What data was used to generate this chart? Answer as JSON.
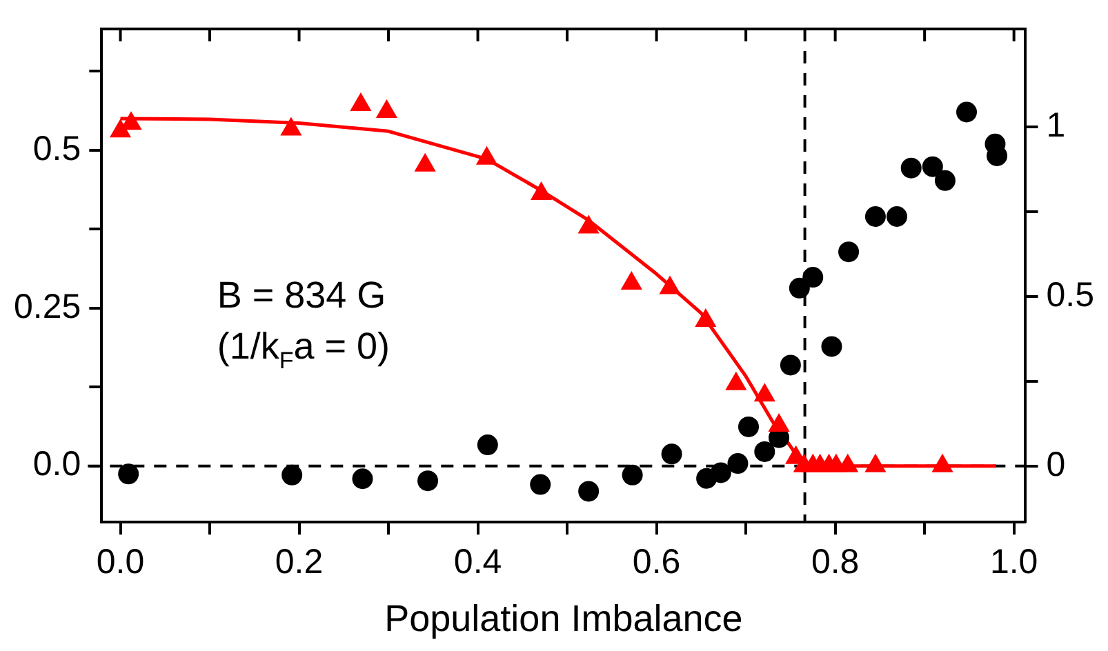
{
  "chart_data": {
    "type": "scatter",
    "xlabel": "Population Imbalance",
    "xlim": [
      -0.021,
      1.013
    ],
    "xticks": [
      {
        "value": 0,
        "label": "0.0"
      },
      {
        "value": 0.1,
        "label": null
      },
      {
        "value": 0.2,
        "label": "0.2"
      },
      {
        "value": 0.3,
        "label": null
      },
      {
        "value": 0.4,
        "label": "0.4"
      },
      {
        "value": 0.5,
        "label": null
      },
      {
        "value": 0.6,
        "label": "0.6"
      },
      {
        "value": 0.7,
        "label": null
      },
      {
        "value": 0.8,
        "label": "0.8"
      },
      {
        "value": 0.9,
        "label": null
      },
      {
        "value": 1,
        "label": "1.0"
      }
    ],
    "ylim": [
      -0.089,
      0.692
    ],
    "yticks": [
      {
        "value": 0,
        "label": "0.0"
      },
      {
        "value": 0.125,
        "label": null
      },
      0.25,
      {
        "value": 0.375,
        "label": null
      },
      0.5,
      {
        "value": 0.625,
        "label": null
      }
    ],
    "y2lim": [
      -0.165,
      1.289
    ],
    "y2ticks": [
      0,
      {
        "value": 0.25,
        "label": null
      },
      0.5,
      {
        "value": 0.75,
        "label": null
      },
      1
    ],
    "series": [
      {
        "type": "scatter",
        "marker": "triangle",
        "color": "#ff0000",
        "x": [
          0.0,
          0.012,
          0.191,
          0.269,
          0.298,
          0.341,
          0.41,
          0.471,
          0.524,
          0.572,
          0.615,
          0.655,
          0.689,
          0.721,
          0.737,
          0.756,
          0.765,
          0.775,
          0.783,
          0.793,
          0.801,
          0.814,
          0.845,
          0.92
        ],
        "values": [
          0.53,
          0.542,
          0.533,
          0.572,
          0.561,
          0.476,
          0.487,
          0.431,
          0.378,
          0.289,
          0.282,
          0.23,
          0.13,
          0.112,
          0.064,
          0.013,
          0,
          0,
          0,
          0,
          0,
          0,
          0,
          0
        ]
      },
      {
        "type": "line",
        "marker": "none",
        "line_style": "solid",
        "color": "#ff0000",
        "x": [
          0,
          0.1,
          0.2,
          0.3,
          0.41,
          0.47,
          0.524,
          0.6,
          0.65,
          0.7,
          0.73,
          0.75,
          0.76,
          0.77,
          0.98
        ],
        "values": [
          0.55,
          0.549,
          0.543,
          0.53,
          0.486,
          0.437,
          0.389,
          0.304,
          0.242,
          0.142,
          0.07,
          0.031,
          0.01,
          0,
          0
        ]
      },
      {
        "type": "scatter",
        "marker": "circle",
        "color": "#000000",
        "axis": "y2",
        "x": [
          0.009,
          0.192,
          0.271,
          0.344,
          0.411,
          0.47,
          0.524,
          0.573,
          0.617,
          0.656,
          0.672,
          0.691,
          0.703,
          0.721,
          0.737,
          0.75,
          0.76,
          0.775,
          0.796,
          0.815,
          0.845,
          0.869,
          0.885,
          0.909,
          0.923,
          0.947,
          0.979,
          0.981
        ],
        "values": [
          -0.023,
          -0.026,
          -0.037,
          -0.043,
          0.063,
          -0.054,
          -0.074,
          -0.026,
          0.036,
          -0.036,
          -0.019,
          0.008,
          0.116,
          0.043,
          0.084,
          0.298,
          0.525,
          0.557,
          0.353,
          0.632,
          0.736,
          0.736,
          0.879,
          0.883,
          0.842,
          1.044,
          0.95,
          0.915
        ]
      }
    ],
    "ref_lines": [
      {
        "axis": "y",
        "value": 0,
        "line_style": "dashed",
        "color": "#000000"
      },
      {
        "axis": "x",
        "value": 0.766,
        "line_style": "dashed",
        "color": "#000000"
      }
    ],
    "annotations": [
      "B = 834 G",
      "(1/k$_{F}$a = 0)"
    ]
  }
}
